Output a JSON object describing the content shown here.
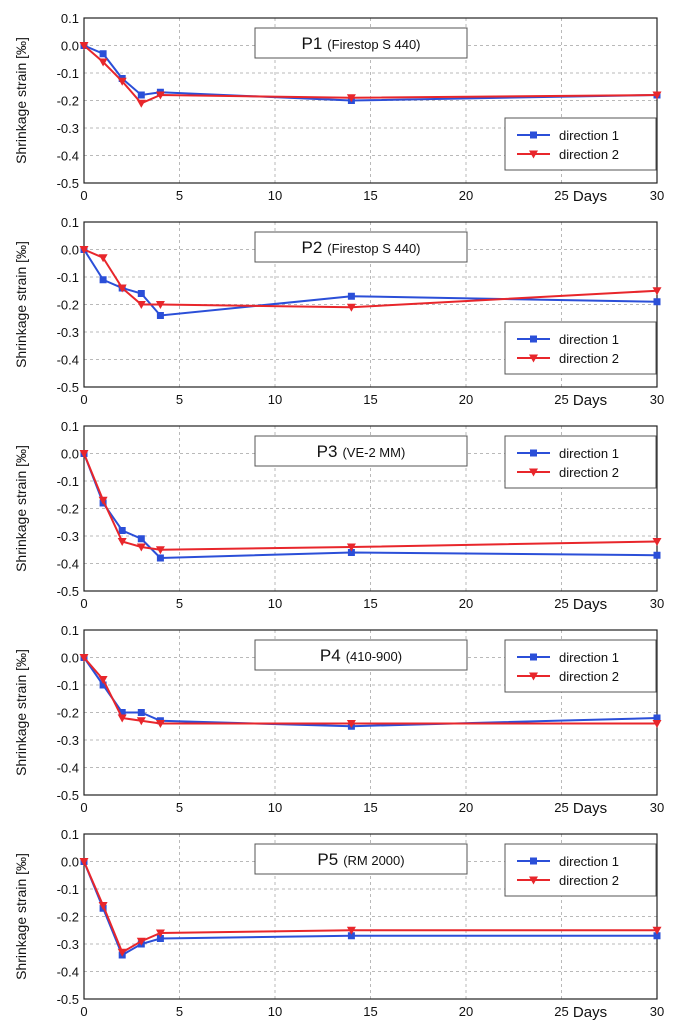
{
  "y_axis_label": "Shrinkage strain [‰]",
  "x_axis_unit": "Days",
  "y_tick_labels": [
    "0.1",
    "0.0",
    "-0.1",
    "-0.2",
    "-0.3",
    "-0.4",
    "-0.5"
  ],
  "x_tick_labels": [
    "0",
    "5",
    "10",
    "15",
    "20",
    "25",
    "30"
  ],
  "colors": {
    "direction_1": "#2b4fd8",
    "direction_2": "#e8262b"
  },
  "chart_data": [
    {
      "type": "line",
      "title": "P1",
      "subtitle": "(Firestop S 440)",
      "xlabel": "Days",
      "ylabel": "Shrinkage strain [‰]",
      "xlim": [
        0,
        30
      ],
      "ylim": [
        -0.5,
        0.1
      ],
      "grid": true,
      "legend_position": "bottom-right",
      "series": [
        {
          "name": "direction 1",
          "marker": "square",
          "x": [
            0,
            1,
            2,
            3,
            4,
            14,
            30
          ],
          "y": [
            0.0,
            -0.03,
            -0.12,
            -0.18,
            -0.17,
            -0.2,
            -0.18
          ]
        },
        {
          "name": "direction 2",
          "marker": "triangle-down",
          "x": [
            0,
            1,
            2,
            3,
            4,
            14,
            30
          ],
          "y": [
            0.0,
            -0.06,
            -0.13,
            -0.21,
            -0.18,
            -0.19,
            -0.18
          ]
        }
      ]
    },
    {
      "type": "line",
      "title": "P2",
      "subtitle": "(Firestop S 440)",
      "xlabel": "Days",
      "ylabel": "Shrinkage strain [‰]",
      "xlim": [
        0,
        30
      ],
      "ylim": [
        -0.5,
        0.1
      ],
      "grid": true,
      "legend_position": "bottom-right",
      "series": [
        {
          "name": "direction 1",
          "marker": "square",
          "x": [
            0,
            1,
            2,
            3,
            4,
            14,
            30
          ],
          "y": [
            0.0,
            -0.11,
            -0.14,
            -0.16,
            -0.24,
            -0.17,
            -0.19
          ]
        },
        {
          "name": "direction 2",
          "marker": "triangle-down",
          "x": [
            0,
            1,
            2,
            3,
            4,
            14,
            30
          ],
          "y": [
            0.0,
            -0.03,
            -0.14,
            -0.2,
            -0.2,
            -0.21,
            -0.15
          ]
        }
      ]
    },
    {
      "type": "line",
      "title": "P3",
      "subtitle": "(VE-2 MM)",
      "xlabel": "Days",
      "ylabel": "Shrinkage strain [‰]",
      "xlim": [
        0,
        30
      ],
      "ylim": [
        -0.5,
        0.1
      ],
      "grid": true,
      "legend_position": "top-right",
      "series": [
        {
          "name": "direction 1",
          "marker": "square",
          "x": [
            0,
            1,
            2,
            3,
            4,
            14,
            30
          ],
          "y": [
            0.0,
            -0.18,
            -0.28,
            -0.31,
            -0.38,
            -0.36,
            -0.37
          ]
        },
        {
          "name": "direction 2",
          "marker": "triangle-down",
          "x": [
            0,
            1,
            2,
            3,
            4,
            14,
            30
          ],
          "y": [
            0.0,
            -0.17,
            -0.32,
            -0.34,
            -0.35,
            -0.34,
            -0.32
          ]
        }
      ]
    },
    {
      "type": "line",
      "title": "P4",
      "subtitle": "(410-900)",
      "xlabel": "Days",
      "ylabel": "Shrinkage strain [‰]",
      "xlim": [
        0,
        30
      ],
      "ylim": [
        -0.5,
        0.1
      ],
      "grid": true,
      "legend_position": "top-right",
      "series": [
        {
          "name": "direction 1",
          "marker": "square",
          "x": [
            0,
            1,
            2,
            3,
            4,
            14,
            30
          ],
          "y": [
            0.0,
            -0.1,
            -0.2,
            -0.2,
            -0.23,
            -0.25,
            -0.22
          ]
        },
        {
          "name": "direction 2",
          "marker": "triangle-down",
          "x": [
            0,
            1,
            2,
            3,
            4,
            14,
            30
          ],
          "y": [
            0.0,
            -0.08,
            -0.22,
            -0.23,
            -0.24,
            -0.24,
            -0.24
          ]
        }
      ]
    },
    {
      "type": "line",
      "title": "P5",
      "subtitle": "(RM 2000)",
      "xlabel": "Days",
      "ylabel": "Shrinkage strain [‰]",
      "xlim": [
        0,
        30
      ],
      "ylim": [
        -0.5,
        0.1
      ],
      "grid": true,
      "legend_position": "top-right",
      "series": [
        {
          "name": "direction 1",
          "marker": "square",
          "x": [
            0,
            1,
            2,
            3,
            4,
            14,
            30
          ],
          "y": [
            0.0,
            -0.17,
            -0.34,
            -0.3,
            -0.28,
            -0.27,
            -0.27
          ]
        },
        {
          "name": "direction 2",
          "marker": "triangle-down",
          "x": [
            0,
            1,
            2,
            3,
            4,
            14,
            30
          ],
          "y": [
            0.0,
            -0.16,
            -0.33,
            -0.29,
            -0.26,
            -0.25,
            -0.25
          ]
        }
      ]
    }
  ]
}
